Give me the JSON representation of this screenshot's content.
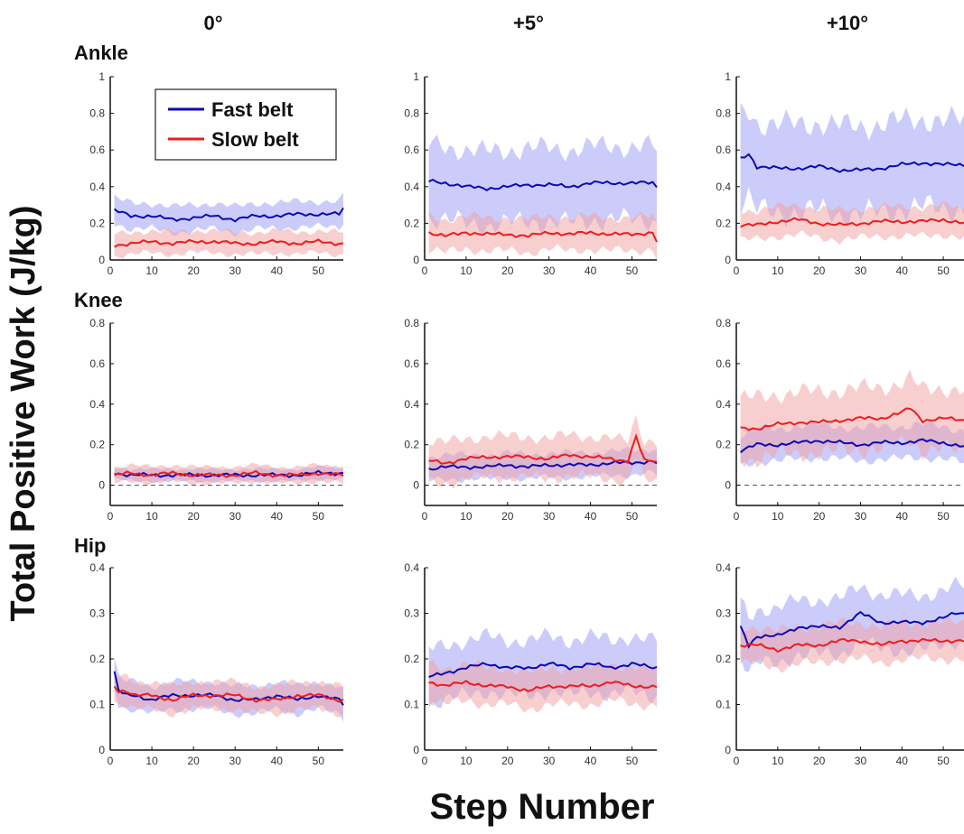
{
  "figure": {
    "y_label": "Total Positive Work (J/kg)",
    "x_label": "Step Number",
    "columns": [
      "0°",
      "+5°",
      "+10°"
    ],
    "rows": [
      "Ankle",
      "Knee",
      "Hip"
    ]
  },
  "legend": {
    "entries": [
      {
        "label": "Fast belt",
        "color": "#0b0bb4"
      },
      {
        "label": "Slow belt",
        "color": "#ee1c1c"
      }
    ]
  },
  "colors": {
    "fast": "#0b0bb4",
    "slow": "#ee1c1c",
    "fast_band": "#9a9af5",
    "slow_band": "#f2a0a0"
  },
  "chart_data": [
    {
      "type": "line",
      "panel": "Ankle 0°",
      "xlim": [
        0,
        56
      ],
      "ylim": [
        0,
        1
      ],
      "yticks": [
        0,
        0.2,
        0.4,
        0.6,
        0.8,
        1
      ],
      "xticks": [
        0,
        10,
        20,
        30,
        40,
        50
      ],
      "zero_line": false,
      "legend": "top-left",
      "series": [
        {
          "name": "Fast belt",
          "x": [
            1,
            5,
            10,
            15,
            20,
            25,
            30,
            35,
            40,
            45,
            50,
            55,
            56
          ],
          "y": [
            0.27,
            0.24,
            0.24,
            0.22,
            0.23,
            0.24,
            0.22,
            0.24,
            0.24,
            0.25,
            0.25,
            0.25,
            0.28
          ],
          "band_halfwidth": 0.07
        },
        {
          "name": "Slow belt",
          "x": [
            1,
            5,
            10,
            15,
            20,
            25,
            30,
            35,
            40,
            45,
            50,
            55,
            56
          ],
          "y": [
            0.08,
            0.09,
            0.1,
            0.09,
            0.1,
            0.1,
            0.09,
            0.09,
            0.1,
            0.09,
            0.1,
            0.09,
            0.09
          ],
          "band_halfwidth": 0.06
        }
      ]
    },
    {
      "type": "line",
      "panel": "Ankle +5°",
      "xlim": [
        0,
        56
      ],
      "ylim": [
        0,
        1
      ],
      "yticks": [
        0,
        0.2,
        0.4,
        0.6,
        0.8,
        1
      ],
      "xticks": [
        0,
        10,
        20,
        30,
        40,
        50
      ],
      "zero_line": false,
      "series": [
        {
          "name": "Fast belt",
          "x": [
            1,
            5,
            10,
            15,
            20,
            25,
            30,
            35,
            40,
            45,
            50,
            55,
            56
          ],
          "y": [
            0.43,
            0.42,
            0.4,
            0.39,
            0.4,
            0.41,
            0.41,
            0.4,
            0.42,
            0.42,
            0.42,
            0.42,
            0.4
          ],
          "band_halfwidth": 0.2
        },
        {
          "name": "Slow belt",
          "x": [
            1,
            5,
            10,
            15,
            20,
            25,
            30,
            35,
            40,
            45,
            50,
            55,
            56
          ],
          "y": [
            0.15,
            0.13,
            0.15,
            0.14,
            0.14,
            0.13,
            0.15,
            0.14,
            0.15,
            0.14,
            0.14,
            0.15,
            0.1
          ],
          "band_halfwidth": 0.09
        }
      ]
    },
    {
      "type": "line",
      "panel": "Ankle +10°",
      "xlim": [
        0,
        55
      ],
      "ylim": [
        0,
        1
      ],
      "yticks": [
        0,
        0.2,
        0.4,
        0.6,
        0.8,
        1
      ],
      "xticks": [
        0,
        10,
        20,
        30,
        40,
        50
      ],
      "zero_line": false,
      "series": [
        {
          "name": "Fast belt",
          "x": [
            1,
            3,
            5,
            10,
            15,
            20,
            25,
            30,
            35,
            40,
            45,
            50,
            55
          ],
          "y": [
            0.55,
            0.58,
            0.51,
            0.5,
            0.5,
            0.51,
            0.49,
            0.49,
            0.5,
            0.52,
            0.53,
            0.52,
            0.52
          ],
          "band_halfwidth": 0.24
        },
        {
          "name": "Slow belt",
          "x": [
            1,
            5,
            10,
            15,
            20,
            25,
            30,
            35,
            40,
            45,
            50,
            55
          ],
          "y": [
            0.19,
            0.19,
            0.21,
            0.22,
            0.2,
            0.19,
            0.2,
            0.21,
            0.21,
            0.21,
            0.22,
            0.2
          ],
          "band_halfwidth": 0.08
        }
      ]
    },
    {
      "type": "line",
      "panel": "Knee 0°",
      "xlim": [
        0,
        56
      ],
      "ylim": [
        -0.1,
        0.8
      ],
      "yticks": [
        0,
        0.2,
        0.4,
        0.6,
        0.8
      ],
      "xticks": [
        0,
        10,
        20,
        30,
        40,
        50
      ],
      "zero_line": true,
      "series": [
        {
          "name": "Fast belt",
          "x": [
            1,
            5,
            10,
            15,
            20,
            25,
            30,
            35,
            40,
            45,
            50,
            55,
            56
          ],
          "y": [
            0.06,
            0.05,
            0.05,
            0.05,
            0.05,
            0.05,
            0.05,
            0.05,
            0.05,
            0.05,
            0.06,
            0.06,
            0.06
          ],
          "band_halfwidth": 0.03
        },
        {
          "name": "Slow belt",
          "x": [
            1,
            5,
            10,
            15,
            20,
            25,
            30,
            35,
            40,
            45,
            50,
            55,
            56
          ],
          "y": [
            0.05,
            0.06,
            0.05,
            0.06,
            0.05,
            0.05,
            0.05,
            0.06,
            0.05,
            0.05,
            0.06,
            0.05,
            0.05
          ],
          "band_halfwidth": 0.04
        }
      ]
    },
    {
      "type": "line",
      "panel": "Knee +5°",
      "xlim": [
        0,
        56
      ],
      "ylim": [
        -0.1,
        0.8
      ],
      "yticks": [
        0,
        0.2,
        0.4,
        0.6,
        0.8
      ],
      "xticks": [
        0,
        10,
        20,
        30,
        40,
        50
      ],
      "zero_line": true,
      "series": [
        {
          "name": "Fast belt",
          "x": [
            1,
            5,
            10,
            15,
            20,
            25,
            30,
            35,
            40,
            45,
            50,
            55,
            56
          ],
          "y": [
            0.08,
            0.09,
            0.09,
            0.09,
            0.1,
            0.09,
            0.1,
            0.1,
            0.1,
            0.11,
            0.11,
            0.12,
            0.11
          ],
          "band_halfwidth": 0.06
        },
        {
          "name": "Slow belt",
          "x": [
            1,
            5,
            10,
            15,
            20,
            25,
            30,
            35,
            40,
            45,
            49,
            51,
            53,
            55,
            56
          ],
          "y": [
            0.12,
            0.11,
            0.13,
            0.14,
            0.14,
            0.14,
            0.13,
            0.15,
            0.14,
            0.13,
            0.12,
            0.24,
            0.12,
            0.12,
            0.11
          ],
          "band_halfwidth": 0.1
        }
      ]
    },
    {
      "type": "line",
      "panel": "Knee +10°",
      "xlim": [
        0,
        55
      ],
      "ylim": [
        -0.1,
        0.8
      ],
      "yticks": [
        0,
        0.2,
        0.4,
        0.6,
        0.8
      ],
      "xticks": [
        0,
        10,
        20,
        30,
        40,
        50
      ],
      "zero_line": true,
      "series": [
        {
          "name": "Fast belt",
          "x": [
            1,
            5,
            10,
            15,
            20,
            25,
            30,
            35,
            40,
            45,
            50,
            55
          ],
          "y": [
            0.17,
            0.2,
            0.2,
            0.21,
            0.22,
            0.21,
            0.2,
            0.21,
            0.21,
            0.22,
            0.21,
            0.19
          ],
          "band_halfwidth": 0.08
        },
        {
          "name": "Slow belt",
          "x": [
            1,
            5,
            10,
            15,
            20,
            25,
            30,
            35,
            40,
            42,
            45,
            50,
            55
          ],
          "y": [
            0.28,
            0.28,
            0.3,
            0.31,
            0.31,
            0.32,
            0.33,
            0.33,
            0.36,
            0.38,
            0.32,
            0.33,
            0.32
          ],
          "band_halfwidth": 0.15
        }
      ]
    },
    {
      "type": "line",
      "panel": "Hip 0°",
      "xlim": [
        0,
        56
      ],
      "ylim": [
        0,
        0.4
      ],
      "yticks": [
        0,
        0.1,
        0.2,
        0.3,
        0.4
      ],
      "xticks": [
        0,
        10,
        20,
        30,
        40,
        50
      ],
      "zero_line": false,
      "series": [
        {
          "name": "Fast belt",
          "x": [
            1,
            2,
            4,
            6,
            10,
            15,
            20,
            25,
            30,
            35,
            40,
            45,
            50,
            55,
            56
          ],
          "y": [
            0.17,
            0.13,
            0.12,
            0.12,
            0.11,
            0.12,
            0.12,
            0.12,
            0.11,
            0.11,
            0.12,
            0.11,
            0.12,
            0.11,
            0.1
          ],
          "band_halfwidth": 0.03
        },
        {
          "name": "Slow belt",
          "x": [
            1,
            2,
            4,
            6,
            10,
            15,
            20,
            25,
            30,
            35,
            40,
            45,
            50,
            55,
            56
          ],
          "y": [
            0.14,
            0.13,
            0.13,
            0.12,
            0.12,
            0.11,
            0.12,
            0.12,
            0.12,
            0.11,
            0.11,
            0.12,
            0.12,
            0.11,
            0.11
          ],
          "band_halfwidth": 0.03
        }
      ]
    },
    {
      "type": "line",
      "panel": "Hip +5°",
      "xlim": [
        0,
        56
      ],
      "ylim": [
        0,
        0.4
      ],
      "yticks": [
        0,
        0.1,
        0.2,
        0.3,
        0.4
      ],
      "xticks": [
        0,
        10,
        20,
        30,
        40,
        50
      ],
      "zero_line": false,
      "series": [
        {
          "name": "Fast belt",
          "x": [
            1,
            5,
            10,
            15,
            20,
            25,
            30,
            35,
            40,
            45,
            50,
            55,
            56
          ],
          "y": [
            0.16,
            0.17,
            0.18,
            0.19,
            0.18,
            0.18,
            0.19,
            0.18,
            0.19,
            0.18,
            0.19,
            0.18,
            0.18
          ],
          "band_halfwidth": 0.06
        },
        {
          "name": "Slow belt",
          "x": [
            1,
            5,
            10,
            15,
            20,
            25,
            30,
            35,
            40,
            45,
            50,
            55,
            56
          ],
          "y": [
            0.15,
            0.14,
            0.15,
            0.14,
            0.14,
            0.13,
            0.14,
            0.14,
            0.14,
            0.15,
            0.14,
            0.14,
            0.14
          ],
          "band_halfwidth": 0.04
        }
      ]
    },
    {
      "type": "line",
      "panel": "Hip +10°",
      "xlim": [
        0,
        55
      ],
      "ylim": [
        0,
        0.4
      ],
      "yticks": [
        0,
        0.1,
        0.2,
        0.3,
        0.4
      ],
      "xticks": [
        0,
        10,
        20,
        30,
        40,
        50
      ],
      "zero_line": false,
      "series": [
        {
          "name": "Fast belt",
          "x": [
            1,
            3,
            5,
            10,
            15,
            20,
            25,
            30,
            35,
            40,
            45,
            50,
            53,
            55
          ],
          "y": [
            0.27,
            0.23,
            0.25,
            0.25,
            0.27,
            0.27,
            0.27,
            0.3,
            0.28,
            0.28,
            0.28,
            0.29,
            0.3,
            0.3
          ],
          "band_halfwidth": 0.06
        },
        {
          "name": "Slow belt",
          "x": [
            1,
            5,
            10,
            15,
            20,
            25,
            30,
            35,
            40,
            45,
            50,
            55
          ],
          "y": [
            0.23,
            0.23,
            0.22,
            0.23,
            0.23,
            0.24,
            0.24,
            0.23,
            0.24,
            0.24,
            0.24,
            0.24
          ],
          "band_halfwidth": 0.04
        }
      ]
    }
  ]
}
